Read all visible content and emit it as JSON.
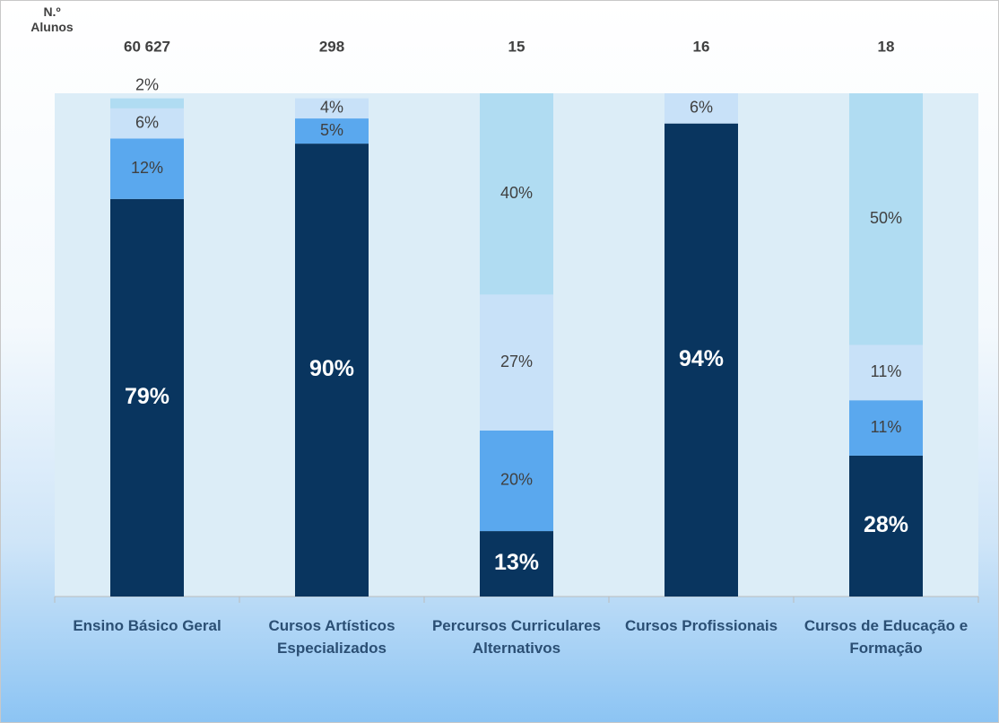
{
  "chart_data": {
    "type": "stacked_bar",
    "categories": [
      "Ensino Básico Geral",
      "Cursos Artísticos Especializados",
      "Percursos Curriculares Alternativos",
      "Cursos Profissionais",
      "Cursos de Educação e Formação"
    ],
    "totals": {
      "label": "N.º Alunos",
      "values": [
        60627,
        298,
        15,
        16,
        18
      ],
      "value_labels": [
        "60 627",
        "298",
        "15",
        "16",
        "18"
      ]
    },
    "ylim": [
      0,
      100
    ],
    "series": [
      {
        "color": "#09355f",
        "values": [
          79,
          90,
          13,
          94,
          28
        ],
        "value_labels": [
          "79%",
          "90%",
          "13%",
          "94%",
          "28%"
        ]
      },
      {
        "color": "#5aa8ee",
        "values": [
          12,
          5,
          20,
          null,
          11
        ],
        "value_labels": [
          "12%",
          "5%",
          "20%",
          null,
          "11%"
        ]
      },
      {
        "color": "#c8e1f8",
        "values": [
          6,
          4,
          27,
          6,
          11
        ],
        "value_labels": [
          "6%",
          "4%",
          "27%",
          "6%",
          "11%"
        ]
      },
      {
        "color": "#b0dcf2",
        "values": [
          2,
          null,
          40,
          null,
          50
        ],
        "value_labels": [
          "2%",
          null,
          "40%",
          null,
          "50%"
        ]
      }
    ]
  }
}
